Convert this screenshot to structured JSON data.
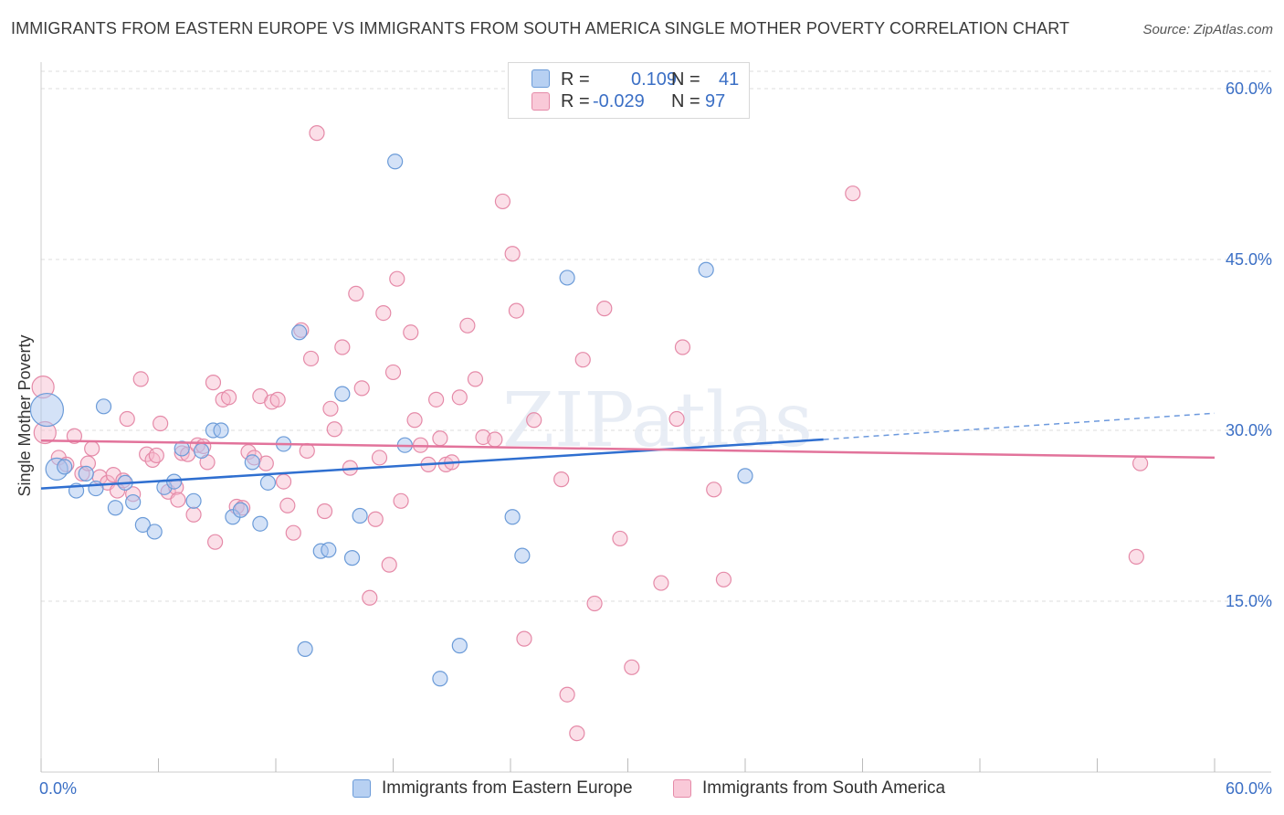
{
  "title": "IMMIGRANTS FROM EASTERN EUROPE VS IMMIGRANTS FROM SOUTH AMERICA SINGLE MOTHER POVERTY CORRELATION CHART",
  "source": "Source: ZipAtlas.com",
  "watermark": "ZIPatlas",
  "colors": {
    "blue_fill": "#a9c6ef",
    "blue_stroke": "#6b9bd8",
    "blue_line": "#2f6fd0",
    "pink_fill": "#f6b9cc",
    "pink_stroke": "#e58aa8",
    "pink_line": "#e2739b",
    "tick_text": "#3b6fc5",
    "grid": "#dddddd"
  },
  "legend_top": {
    "rows": [
      {
        "series": "blue",
        "r_label": "R =",
        "r_value": "0.109",
        "n_label": "N =",
        "n_value": "41"
      },
      {
        "series": "pink",
        "r_label": "R =",
        "r_value": "-0.029",
        "n_label": "N =",
        "n_value": "97"
      }
    ]
  },
  "legend_bottom": [
    {
      "series": "blue",
      "label": "Immigrants from Eastern Europe"
    },
    {
      "series": "pink",
      "label": "Immigrants from South America"
    }
  ],
  "chart_data": {
    "type": "scatter",
    "title": "IMMIGRANTS FROM EASTERN EUROPE VS IMMIGRANTS FROM SOUTH AMERICA SINGLE MOTHER POVERTY CORRELATION CHART",
    "xlabel": "",
    "ylabel": "Single Mother Poverty",
    "xlim": [
      0,
      60
    ],
    "ylim": [
      0,
      60
    ],
    "x_tick_labels": [
      "0.0%",
      "60.0%"
    ],
    "y_ticks": [
      15,
      30,
      45,
      60
    ],
    "y_tick_labels": [
      "15.0%",
      "30.0%",
      "45.0%",
      "60.0%"
    ],
    "grid": true,
    "legend_position": "top-center",
    "series": [
      {
        "name": "Immigrants from Eastern Europe",
        "color": "blue",
        "R": 0.109,
        "N": 41,
        "trend": {
          "x": [
            0,
            40
          ],
          "y": [
            24.9,
            29.2
          ],
          "dashed_to": [
            60,
            31.5
          ]
        },
        "points": [
          [
            0.3,
            31.8,
            3
          ],
          [
            0.8,
            26.6,
            2
          ],
          [
            1.2,
            26.8,
            1
          ],
          [
            1.8,
            24.7,
            1
          ],
          [
            2.3,
            26.2,
            1
          ],
          [
            2.8,
            24.9,
            1
          ],
          [
            3.2,
            32.1,
            1
          ],
          [
            3.8,
            23.2,
            1
          ],
          [
            4.3,
            25.4,
            1
          ],
          [
            4.7,
            23.7,
            1
          ],
          [
            5.2,
            21.7,
            1
          ],
          [
            5.8,
            21.1,
            1
          ],
          [
            6.3,
            25.0,
            1
          ],
          [
            6.8,
            25.5,
            1
          ],
          [
            7.2,
            28.4,
            1
          ],
          [
            7.8,
            23.8,
            1
          ],
          [
            8.2,
            28.2,
            1
          ],
          [
            8.8,
            30.0,
            1
          ],
          [
            9.2,
            30.0,
            1
          ],
          [
            9.8,
            22.4,
            1
          ],
          [
            10.2,
            23.0,
            1
          ],
          [
            10.8,
            27.2,
            1
          ],
          [
            11.2,
            21.8,
            1
          ],
          [
            11.6,
            25.4,
            1
          ],
          [
            12.4,
            28.8,
            1
          ],
          [
            13.2,
            38.6,
            1
          ],
          [
            13.5,
            10.8,
            1
          ],
          [
            14.3,
            19.4,
            1
          ],
          [
            14.7,
            19.5,
            1
          ],
          [
            15.4,
            33.2,
            1
          ],
          [
            15.9,
            18.8,
            1
          ],
          [
            16.3,
            22.5,
            1
          ],
          [
            18.1,
            53.6,
            1
          ],
          [
            18.6,
            28.7,
            1
          ],
          [
            20.4,
            8.2,
            1
          ],
          [
            21.4,
            11.1,
            1
          ],
          [
            24.1,
            22.4,
            1
          ],
          [
            24.6,
            19.0,
            1
          ],
          [
            26.9,
            43.4,
            1
          ],
          [
            34.0,
            44.1,
            1
          ],
          [
            36.0,
            26.0,
            1
          ]
        ]
      },
      {
        "name": "Immigrants from South America",
        "color": "pink",
        "R": -0.029,
        "N": 97,
        "trend": {
          "x": [
            0,
            60
          ],
          "y": [
            29.1,
            27.6
          ]
        },
        "points": [
          [
            0.1,
            33.8,
            2
          ],
          [
            0.2,
            29.8,
            2
          ],
          [
            0.9,
            27.6,
            1
          ],
          [
            1.3,
            27.0,
            1
          ],
          [
            1.7,
            29.5,
            1
          ],
          [
            2.1,
            26.2,
            1
          ],
          [
            2.4,
            27.1,
            1
          ],
          [
            2.6,
            28.4,
            1
          ],
          [
            3.0,
            25.9,
            1
          ],
          [
            3.4,
            25.4,
            1
          ],
          [
            3.7,
            26.1,
            1
          ],
          [
            3.9,
            24.7,
            1
          ],
          [
            4.2,
            25.6,
            1
          ],
          [
            4.4,
            31.0,
            1
          ],
          [
            4.7,
            24.4,
            1
          ],
          [
            5.1,
            34.5,
            1
          ],
          [
            5.4,
            27.9,
            1
          ],
          [
            5.7,
            27.4,
            1
          ],
          [
            5.9,
            27.8,
            1
          ],
          [
            6.1,
            30.6,
            1
          ],
          [
            6.5,
            24.6,
            1
          ],
          [
            6.9,
            25.0,
            1
          ],
          [
            7.0,
            23.9,
            1
          ],
          [
            7.2,
            28.0,
            1
          ],
          [
            7.5,
            27.9,
            1
          ],
          [
            7.8,
            22.6,
            1
          ],
          [
            8.0,
            28.7,
            1
          ],
          [
            8.3,
            28.6,
            1
          ],
          [
            8.5,
            27.2,
            1
          ],
          [
            8.8,
            34.2,
            1
          ],
          [
            8.9,
            20.2,
            1
          ],
          [
            9.3,
            32.7,
            1
          ],
          [
            9.6,
            32.9,
            1
          ],
          [
            10.0,
            23.3,
            1
          ],
          [
            10.3,
            23.2,
            1
          ],
          [
            10.6,
            28.1,
            1
          ],
          [
            10.9,
            27.6,
            1
          ],
          [
            11.2,
            33.0,
            1
          ],
          [
            11.5,
            27.1,
            1
          ],
          [
            11.8,
            32.5,
            1
          ],
          [
            12.1,
            32.7,
            1
          ],
          [
            12.4,
            25.5,
            1
          ],
          [
            12.6,
            23.4,
            1
          ],
          [
            12.9,
            21.0,
            1
          ],
          [
            13.3,
            38.8,
            1
          ],
          [
            13.6,
            28.2,
            1
          ],
          [
            13.8,
            36.3,
            1
          ],
          [
            14.1,
            56.1,
            1
          ],
          [
            14.5,
            22.9,
            1
          ],
          [
            14.8,
            31.9,
            1
          ],
          [
            15.0,
            30.1,
            1
          ],
          [
            15.4,
            37.3,
            1
          ],
          [
            15.8,
            26.7,
            1
          ],
          [
            16.1,
            42.0,
            1
          ],
          [
            16.4,
            33.7,
            1
          ],
          [
            16.8,
            15.3,
            1
          ],
          [
            17.1,
            22.2,
            1
          ],
          [
            17.3,
            27.6,
            1
          ],
          [
            17.5,
            40.3,
            1
          ],
          [
            17.8,
            18.2,
            1
          ],
          [
            18.0,
            35.1,
            1
          ],
          [
            18.2,
            43.3,
            1
          ],
          [
            18.4,
            23.8,
            1
          ],
          [
            18.9,
            38.6,
            1
          ],
          [
            19.1,
            30.9,
            1
          ],
          [
            19.4,
            28.7,
            1
          ],
          [
            19.8,
            27.0,
            1
          ],
          [
            20.2,
            32.7,
            1
          ],
          [
            20.4,
            29.3,
            1
          ],
          [
            20.7,
            27.0,
            1
          ],
          [
            21.0,
            27.2,
            1
          ],
          [
            21.4,
            32.9,
            1
          ],
          [
            21.8,
            39.2,
            1
          ],
          [
            22.2,
            34.5,
            1
          ],
          [
            22.6,
            29.4,
            1
          ],
          [
            23.2,
            29.2,
            1
          ],
          [
            23.6,
            50.1,
            1
          ],
          [
            24.1,
            45.5,
            1
          ],
          [
            24.3,
            40.5,
            1
          ],
          [
            24.7,
            11.7,
            1
          ],
          [
            25.2,
            30.9,
            1
          ],
          [
            26.6,
            25.7,
            1
          ],
          [
            26.9,
            6.8,
            1
          ],
          [
            27.4,
            3.4,
            1
          ],
          [
            27.7,
            36.2,
            1
          ],
          [
            28.3,
            14.8,
            1
          ],
          [
            28.8,
            40.7,
            1
          ],
          [
            29.6,
            20.5,
            1
          ],
          [
            30.2,
            9.2,
            1
          ],
          [
            31.7,
            16.6,
            1
          ],
          [
            32.5,
            31.0,
            1
          ],
          [
            32.8,
            37.3,
            1
          ],
          [
            34.4,
            24.8,
            1
          ],
          [
            34.9,
            16.9,
            1
          ],
          [
            41.5,
            50.8,
            1
          ],
          [
            56.0,
            18.9,
            1
          ],
          [
            56.2,
            27.1,
            1
          ]
        ]
      }
    ]
  }
}
